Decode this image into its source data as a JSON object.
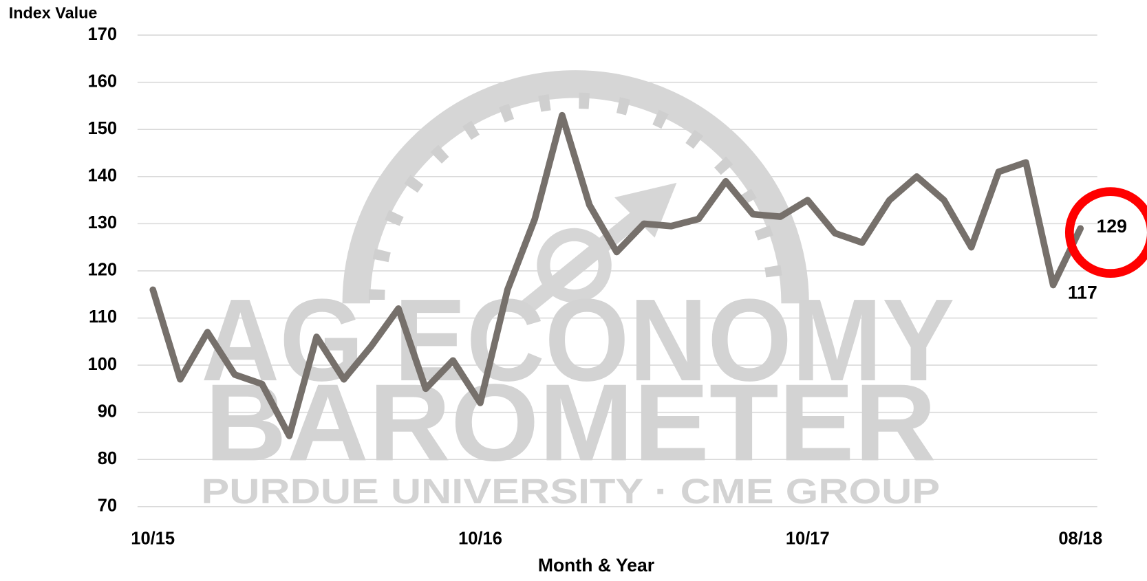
{
  "chart_data": {
    "type": "line",
    "ylabel": "Index Value",
    "xlabel": "Month & Year",
    "watermark": [
      "AG ECONOMY",
      "BAROMETER",
      "PURDUE UNIVERSITY · CME GROUP"
    ],
    "categories": [
      "10/15",
      null,
      null,
      null,
      null,
      null,
      null,
      null,
      null,
      null,
      null,
      null,
      "10/16",
      null,
      null,
      null,
      null,
      null,
      null,
      null,
      null,
      null,
      null,
      null,
      "10/17",
      null,
      null,
      null,
      null,
      null,
      null,
      null,
      null,
      null,
      "08/18"
    ],
    "series": [
      {
        "name": "Index Value",
        "color": "#76706b",
        "values": [
          116,
          97,
          107,
          98,
          96,
          85,
          106,
          97,
          104,
          112,
          95,
          101,
          92,
          116,
          131,
          153,
          134,
          124,
          130,
          129.5,
          131,
          139,
          132,
          131.5,
          135,
          128,
          126,
          135,
          140,
          135,
          125,
          141,
          143,
          117,
          129
        ]
      }
    ],
    "ylim": [
      70,
      170
    ],
    "yticks": [
      70,
      80,
      90,
      100,
      110,
      120,
      130,
      140,
      150,
      160,
      170
    ],
    "grid": true
  }
}
